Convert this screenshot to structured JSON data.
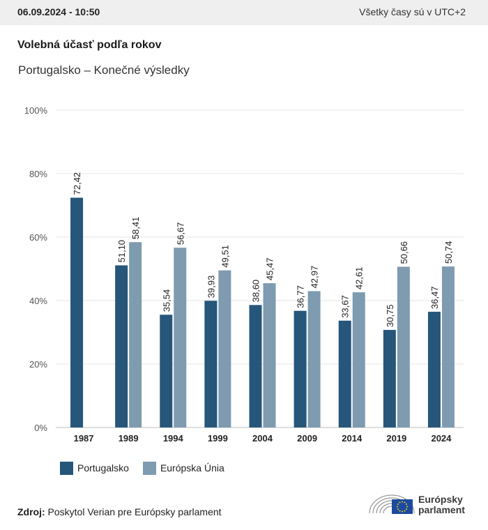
{
  "header": {
    "timestamp": "06.09.2024 - 10:50",
    "timezone_note": "Všetky časy sú v UTC+2"
  },
  "title": "Volebná účasť podľa rokov",
  "subtitle": "Portugalsko – Konečné výsledky",
  "chart_data": {
    "type": "bar",
    "categories": [
      "1987",
      "1989",
      "1994",
      "1999",
      "2004",
      "2009",
      "2014",
      "2019",
      "2024"
    ],
    "series": [
      {
        "name": "Portugalsko",
        "color": "#26567a",
        "values": [
          72.42,
          51.1,
          35.54,
          39.93,
          38.6,
          36.77,
          33.67,
          30.75,
          36.47
        ]
      },
      {
        "name": "Európska Únia",
        "color": "#7e9bb0",
        "values": [
          null,
          58.41,
          56.67,
          49.51,
          45.47,
          42.97,
          42.61,
          50.66,
          50.74
        ]
      }
    ],
    "data_labels": [
      [
        "72,42",
        "51,10",
        "35,54",
        "39,93",
        "38,60",
        "36,77",
        "33,67",
        "30,75",
        "36,47"
      ],
      [
        null,
        "58,41",
        "56,67",
        "49,51",
        "45,47",
        "42,97",
        "42,61",
        "50,66",
        "50,74"
      ]
    ],
    "yticks": [
      "0%",
      "20%",
      "40%",
      "60%",
      "80%",
      "100%"
    ],
    "ylim": [
      0,
      100
    ],
    "grid": true,
    "legend_position": "bottom-left"
  },
  "source": {
    "label": "Zdroj:",
    "text": "Poskytol Verian pre Európsky parlament"
  },
  "logo": {
    "line1": "Európsky",
    "line2": "parlament"
  }
}
